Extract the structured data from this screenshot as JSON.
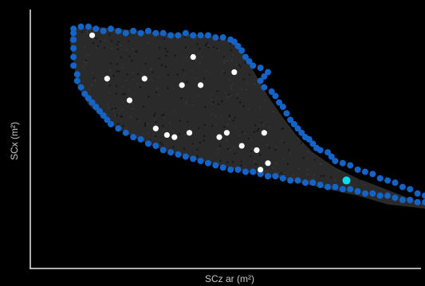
{
  "chart_data": {
    "type": "scatter",
    "xlabel": "SCz ar (m²)",
    "ylabel": "SCx (m²)",
    "xlim": [
      0,
      100
    ],
    "ylim": [
      0,
      100
    ],
    "grid": false,
    "colors": {
      "background": "#000000",
      "cloud": "#2a2a2a",
      "boundary": "#1464c8",
      "selected": "#ffffff",
      "highlight": "#00e0f0",
      "axis": "#e6e6e6"
    },
    "series": [
      {
        "role": "cloud-region",
        "outline": [
          [
            6,
            97
          ],
          [
            12,
            98
          ],
          [
            30,
            95
          ],
          [
            42,
            94
          ],
          [
            49,
            91
          ],
          [
            52,
            84
          ],
          [
            55,
            75
          ],
          [
            58,
            66
          ],
          [
            62,
            56
          ],
          [
            66,
            47
          ],
          [
            70,
            40
          ],
          [
            76,
            33
          ],
          [
            82,
            28
          ],
          [
            88,
            24
          ],
          [
            94,
            20
          ],
          [
            100,
            16
          ],
          [
            100,
            14
          ],
          [
            90,
            16
          ],
          [
            82,
            20
          ],
          [
            74,
            23
          ],
          [
            64,
            27
          ],
          [
            52,
            31
          ],
          [
            40,
            36
          ],
          [
            30,
            41
          ],
          [
            22,
            47
          ],
          [
            15,
            54
          ],
          [
            10,
            62
          ],
          [
            7,
            71
          ],
          [
            6,
            82
          ],
          [
            5,
            92
          ]
        ]
      },
      {
        "role": "boundary",
        "points": [
          [
            6,
            97
          ],
          [
            8,
            98
          ],
          [
            10,
            98
          ],
          [
            12,
            97
          ],
          [
            14,
            96
          ],
          [
            16,
            97
          ],
          [
            18,
            96
          ],
          [
            20,
            95
          ],
          [
            22,
            96
          ],
          [
            24,
            95
          ],
          [
            26,
            96
          ],
          [
            28,
            95
          ],
          [
            30,
            95
          ],
          [
            32,
            94
          ],
          [
            34,
            94
          ],
          [
            36,
            95
          ],
          [
            38,
            94
          ],
          [
            40,
            94
          ],
          [
            42,
            94
          ],
          [
            44,
            93
          ],
          [
            46,
            93
          ],
          [
            48,
            92
          ],
          [
            49,
            91
          ],
          [
            50,
            89
          ],
          [
            51,
            87
          ],
          [
            52,
            84
          ],
          [
            53,
            82
          ],
          [
            54,
            80
          ],
          [
            56,
            79
          ],
          [
            58,
            77
          ],
          [
            57,
            75
          ],
          [
            56,
            73
          ],
          [
            57,
            70
          ],
          [
            59,
            68
          ],
          [
            60,
            66
          ],
          [
            61,
            63
          ],
          [
            62,
            61
          ],
          [
            63,
            58
          ],
          [
            64,
            55
          ],
          [
            65,
            53
          ],
          [
            66,
            51
          ],
          [
            67,
            49
          ],
          [
            68,
            47
          ],
          [
            69,
            46
          ],
          [
            70,
            44
          ],
          [
            71,
            42
          ],
          [
            72,
            41
          ],
          [
            74,
            40
          ],
          [
            75,
            38
          ],
          [
            76,
            36
          ],
          [
            78,
            35
          ],
          [
            80,
            34
          ],
          [
            82,
            32
          ],
          [
            84,
            31
          ],
          [
            86,
            30
          ],
          [
            88,
            28
          ],
          [
            90,
            27
          ],
          [
            92,
            26
          ],
          [
            94,
            24
          ],
          [
            96,
            23
          ],
          [
            98,
            21
          ],
          [
            100,
            20
          ],
          [
            100,
            17
          ],
          [
            98,
            17
          ],
          [
            96,
            18
          ],
          [
            94,
            18
          ],
          [
            92,
            19
          ],
          [
            90,
            20
          ],
          [
            88,
            20
          ],
          [
            86,
            21
          ],
          [
            84,
            21
          ],
          [
            82,
            22
          ],
          [
            80,
            23
          ],
          [
            78,
            23
          ],
          [
            76,
            24
          ],
          [
            74,
            24
          ],
          [
            72,
            25
          ],
          [
            70,
            26
          ],
          [
            68,
            26
          ],
          [
            66,
            27
          ],
          [
            64,
            27
          ],
          [
            62,
            28
          ],
          [
            60,
            29
          ],
          [
            58,
            29
          ],
          [
            56,
            30
          ],
          [
            54,
            31
          ],
          [
            52,
            31
          ],
          [
            50,
            32
          ],
          [
            48,
            32
          ],
          [
            46,
            33
          ],
          [
            44,
            34
          ],
          [
            42,
            35
          ],
          [
            40,
            36
          ],
          [
            38,
            37
          ],
          [
            36,
            38
          ],
          [
            34,
            39
          ],
          [
            32,
            40
          ],
          [
            30,
            41
          ],
          [
            28,
            43
          ],
          [
            26,
            44
          ],
          [
            24,
            46
          ],
          [
            22,
            47
          ],
          [
            20,
            49
          ],
          [
            18,
            51
          ],
          [
            16,
            53
          ],
          [
            15,
            55
          ],
          [
            14,
            57
          ],
          [
            13,
            59
          ],
          [
            12,
            61
          ],
          [
            11,
            63
          ],
          [
            10,
            65
          ],
          [
            9,
            67
          ],
          [
            8,
            70
          ],
          [
            7,
            73
          ],
          [
            7,
            76
          ],
          [
            6,
            80
          ],
          [
            6,
            84
          ],
          [
            6,
            88
          ],
          [
            6,
            92
          ],
          [
            6,
            95
          ]
        ]
      },
      {
        "role": "selected",
        "points": [
          [
            11,
            94
          ],
          [
            15,
            74
          ],
          [
            25,
            74
          ],
          [
            35,
            71
          ],
          [
            40,
            71
          ],
          [
            49,
            77
          ],
          [
            21,
            64
          ],
          [
            28,
            51
          ],
          [
            31,
            48
          ],
          [
            33,
            47
          ],
          [
            37,
            49
          ],
          [
            45,
            47
          ],
          [
            47,
            49
          ],
          [
            51,
            43
          ],
          [
            55,
            41
          ],
          [
            57,
            49
          ],
          [
            56,
            32
          ],
          [
            58,
            35
          ],
          [
            38,
            84
          ]
        ]
      },
      {
        "role": "highlight",
        "points": [
          [
            79,
            27
          ]
        ]
      }
    ]
  }
}
